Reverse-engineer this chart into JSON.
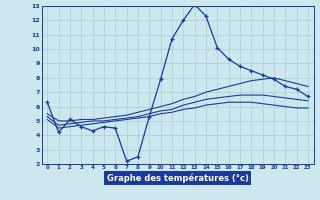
{
  "xlabel": "Graphe des températures (°c)",
  "bg_color": "#cce8ee",
  "grid_color": "#a8cdd8",
  "line_color": "#1a3a9c",
  "xlim": [
    -0.5,
    23.5
  ],
  "ylim": [
    2,
    13
  ],
  "x_ticks": [
    0,
    1,
    2,
    3,
    4,
    5,
    6,
    7,
    8,
    9,
    10,
    11,
    12,
    13,
    14,
    15,
    16,
    17,
    18,
    19,
    20,
    21,
    22,
    23
  ],
  "y_ticks": [
    2,
    3,
    4,
    5,
    6,
    7,
    8,
    9,
    10,
    11,
    12,
    13
  ],
  "main_line": {
    "x": [
      0,
      1,
      2,
      3,
      4,
      5,
      6,
      7,
      8,
      9,
      10,
      11,
      12,
      13,
      14,
      15,
      16,
      17,
      18,
      19,
      20,
      21,
      22,
      23
    ],
    "y": [
      6.3,
      4.2,
      5.1,
      4.6,
      4.3,
      4.6,
      4.5,
      2.2,
      2.5,
      5.3,
      7.9,
      10.7,
      12.0,
      13.1,
      12.3,
      10.1,
      9.3,
      8.8,
      8.5,
      8.2,
      7.9,
      7.4,
      7.2,
      6.7
    ]
  },
  "upper_line": {
    "x": [
      0,
      1,
      2,
      3,
      4,
      5,
      6,
      7,
      8,
      9,
      10,
      11,
      12,
      13,
      14,
      15,
      16,
      17,
      18,
      19,
      20,
      21,
      22,
      23
    ],
    "y": [
      5.5,
      5.0,
      5.0,
      5.1,
      5.1,
      5.2,
      5.3,
      5.4,
      5.6,
      5.8,
      6.0,
      6.2,
      6.5,
      6.7,
      7.0,
      7.2,
      7.4,
      7.6,
      7.8,
      7.9,
      8.0,
      7.8,
      7.6,
      7.4
    ]
  },
  "mid_line": {
    "x": [
      0,
      1,
      2,
      3,
      4,
      5,
      6,
      7,
      8,
      9,
      10,
      11,
      12,
      13,
      14,
      15,
      16,
      17,
      18,
      19,
      20,
      21,
      22,
      23
    ],
    "y": [
      5.3,
      4.7,
      4.8,
      4.9,
      5.0,
      5.0,
      5.1,
      5.2,
      5.3,
      5.5,
      5.7,
      5.8,
      6.1,
      6.3,
      6.5,
      6.6,
      6.7,
      6.8,
      6.8,
      6.8,
      6.7,
      6.6,
      6.5,
      6.4
    ]
  },
  "lower_line": {
    "x": [
      0,
      1,
      2,
      3,
      4,
      5,
      6,
      7,
      8,
      9,
      10,
      11,
      12,
      13,
      14,
      15,
      16,
      17,
      18,
      19,
      20,
      21,
      22,
      23
    ],
    "y": [
      5.1,
      4.5,
      4.6,
      4.7,
      4.8,
      4.9,
      5.0,
      5.1,
      5.2,
      5.3,
      5.5,
      5.6,
      5.8,
      5.9,
      6.1,
      6.2,
      6.3,
      6.3,
      6.3,
      6.2,
      6.1,
      6.0,
      5.9,
      5.9
    ]
  }
}
